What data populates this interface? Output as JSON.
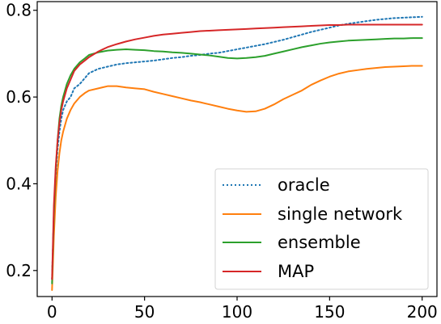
{
  "chart_data": {
    "type": "line",
    "title": "",
    "xlabel": "",
    "ylabel": "",
    "xlim": [
      -8,
      208
    ],
    "ylim": [
      0.14,
      0.82
    ],
    "x_ticks": [
      0,
      50,
      100,
      150,
      200
    ],
    "y_ticks": [
      0.2,
      0.4,
      0.6,
      0.8
    ],
    "x_tick_labels": [
      "0",
      "50",
      "100",
      "150",
      "200"
    ],
    "y_tick_labels": [
      "0.2",
      "0.4",
      "0.6",
      "0.8"
    ],
    "grid": false,
    "legend_position": "lower-right",
    "series": [
      {
        "name": "oracle",
        "color": "#1f77b4",
        "style": "dotted",
        "points": [
          [
            0,
            0.18
          ],
          [
            1,
            0.33
          ],
          [
            2,
            0.42
          ],
          [
            3,
            0.48
          ],
          [
            4,
            0.52
          ],
          [
            5,
            0.55
          ],
          [
            6,
            0.57
          ],
          [
            8,
            0.59
          ],
          [
            10,
            0.6
          ],
          [
            12,
            0.62
          ],
          [
            15,
            0.63
          ],
          [
            18,
            0.645
          ],
          [
            20,
            0.655
          ],
          [
            25,
            0.665
          ],
          [
            30,
            0.67
          ],
          [
            35,
            0.675
          ],
          [
            40,
            0.678
          ],
          [
            45,
            0.68
          ],
          [
            50,
            0.682
          ],
          [
            55,
            0.684
          ],
          [
            60,
            0.687
          ],
          [
            65,
            0.69
          ],
          [
            70,
            0.692
          ],
          [
            75,
            0.695
          ],
          [
            80,
            0.697
          ],
          [
            85,
            0.7
          ],
          [
            90,
            0.702
          ],
          [
            95,
            0.706
          ],
          [
            100,
            0.71
          ],
          [
            105,
            0.714
          ],
          [
            110,
            0.718
          ],
          [
            115,
            0.722
          ],
          [
            120,
            0.727
          ],
          [
            125,
            0.732
          ],
          [
            130,
            0.738
          ],
          [
            135,
            0.744
          ],
          [
            140,
            0.75
          ],
          [
            145,
            0.755
          ],
          [
            150,
            0.76
          ],
          [
            155,
            0.765
          ],
          [
            160,
            0.769
          ],
          [
            165,
            0.772
          ],
          [
            170,
            0.775
          ],
          [
            175,
            0.778
          ],
          [
            180,
            0.78
          ],
          [
            185,
            0.782
          ],
          [
            190,
            0.783
          ],
          [
            195,
            0.784
          ],
          [
            200,
            0.785
          ]
        ]
      },
      {
        "name": "single network",
        "color": "#ff7f0e",
        "style": "solid",
        "points": [
          [
            0,
            0.155
          ],
          [
            1,
            0.28
          ],
          [
            2,
            0.37
          ],
          [
            3,
            0.43
          ],
          [
            4,
            0.47
          ],
          [
            5,
            0.5
          ],
          [
            6,
            0.52
          ],
          [
            8,
            0.55
          ],
          [
            10,
            0.57
          ],
          [
            12,
            0.585
          ],
          [
            15,
            0.6
          ],
          [
            18,
            0.61
          ],
          [
            20,
            0.615
          ],
          [
            25,
            0.62
          ],
          [
            30,
            0.625
          ],
          [
            35,
            0.625
          ],
          [
            40,
            0.622
          ],
          [
            45,
            0.62
          ],
          [
            50,
            0.618
          ],
          [
            55,
            0.612
          ],
          [
            60,
            0.607
          ],
          [
            65,
            0.602
          ],
          [
            70,
            0.597
          ],
          [
            75,
            0.592
          ],
          [
            80,
            0.588
          ],
          [
            85,
            0.583
          ],
          [
            90,
            0.578
          ],
          [
            95,
            0.573
          ],
          [
            100,
            0.569
          ],
          [
            105,
            0.566
          ],
          [
            110,
            0.567
          ],
          [
            115,
            0.573
          ],
          [
            120,
            0.583
          ],
          [
            125,
            0.595
          ],
          [
            130,
            0.605
          ],
          [
            135,
            0.615
          ],
          [
            140,
            0.628
          ],
          [
            145,
            0.638
          ],
          [
            150,
            0.647
          ],
          [
            155,
            0.654
          ],
          [
            160,
            0.659
          ],
          [
            165,
            0.662
          ],
          [
            170,
            0.665
          ],
          [
            175,
            0.667
          ],
          [
            180,
            0.669
          ],
          [
            185,
            0.67
          ],
          [
            190,
            0.671
          ],
          [
            195,
            0.672
          ],
          [
            200,
            0.672
          ]
        ]
      },
      {
        "name": "ensemble",
        "color": "#2ca02c",
        "style": "solid",
        "points": [
          [
            0,
            0.17
          ],
          [
            1,
            0.33
          ],
          [
            2,
            0.43
          ],
          [
            3,
            0.5
          ],
          [
            4,
            0.55
          ],
          [
            5,
            0.58
          ],
          [
            6,
            0.6
          ],
          [
            8,
            0.63
          ],
          [
            10,
            0.65
          ],
          [
            12,
            0.665
          ],
          [
            15,
            0.68
          ],
          [
            18,
            0.69
          ],
          [
            20,
            0.697
          ],
          [
            25,
            0.703
          ],
          [
            30,
            0.707
          ],
          [
            35,
            0.709
          ],
          [
            40,
            0.71
          ],
          [
            45,
            0.709
          ],
          [
            50,
            0.708
          ],
          [
            55,
            0.706
          ],
          [
            60,
            0.705
          ],
          [
            65,
            0.703
          ],
          [
            70,
            0.702
          ],
          [
            75,
            0.7
          ],
          [
            80,
            0.698
          ],
          [
            85,
            0.696
          ],
          [
            90,
            0.693
          ],
          [
            95,
            0.69
          ],
          [
            100,
            0.689
          ],
          [
            105,
            0.69
          ],
          [
            110,
            0.692
          ],
          [
            115,
            0.695
          ],
          [
            120,
            0.7
          ],
          [
            125,
            0.705
          ],
          [
            130,
            0.71
          ],
          [
            135,
            0.715
          ],
          [
            140,
            0.719
          ],
          [
            145,
            0.723
          ],
          [
            150,
            0.726
          ],
          [
            155,
            0.728
          ],
          [
            160,
            0.73
          ],
          [
            165,
            0.731
          ],
          [
            170,
            0.732
          ],
          [
            175,
            0.733
          ],
          [
            180,
            0.734
          ],
          [
            185,
            0.735
          ],
          [
            190,
            0.735
          ],
          [
            195,
            0.736
          ],
          [
            200,
            0.736
          ]
        ]
      },
      {
        "name": "MAP",
        "color": "#d62728",
        "style": "solid",
        "points": [
          [
            0,
            0.18
          ],
          [
            1,
            0.35
          ],
          [
            2,
            0.44
          ],
          [
            3,
            0.5
          ],
          [
            4,
            0.54
          ],
          [
            5,
            0.57
          ],
          [
            6,
            0.59
          ],
          [
            8,
            0.62
          ],
          [
            10,
            0.64
          ],
          [
            12,
            0.66
          ],
          [
            15,
            0.675
          ],
          [
            18,
            0.685
          ],
          [
            20,
            0.692
          ],
          [
            25,
            0.705
          ],
          [
            30,
            0.715
          ],
          [
            35,
            0.722
          ],
          [
            40,
            0.728
          ],
          [
            45,
            0.733
          ],
          [
            50,
            0.737
          ],
          [
            55,
            0.741
          ],
          [
            60,
            0.744
          ],
          [
            65,
            0.746
          ],
          [
            70,
            0.748
          ],
          [
            75,
            0.75
          ],
          [
            80,
            0.752
          ],
          [
            85,
            0.753
          ],
          [
            90,
            0.754
          ],
          [
            95,
            0.755
          ],
          [
            100,
            0.756
          ],
          [
            105,
            0.757
          ],
          [
            110,
            0.758
          ],
          [
            115,
            0.759
          ],
          [
            120,
            0.76
          ],
          [
            125,
            0.761
          ],
          [
            130,
            0.762
          ],
          [
            135,
            0.763
          ],
          [
            140,
            0.764
          ],
          [
            145,
            0.765
          ],
          [
            150,
            0.766
          ],
          [
            155,
            0.766
          ],
          [
            160,
            0.767
          ],
          [
            165,
            0.767
          ],
          [
            170,
            0.767
          ],
          [
            175,
            0.767
          ],
          [
            180,
            0.767
          ],
          [
            185,
            0.767
          ],
          [
            190,
            0.767
          ],
          [
            195,
            0.767
          ],
          [
            200,
            0.767
          ]
        ]
      }
    ]
  }
}
